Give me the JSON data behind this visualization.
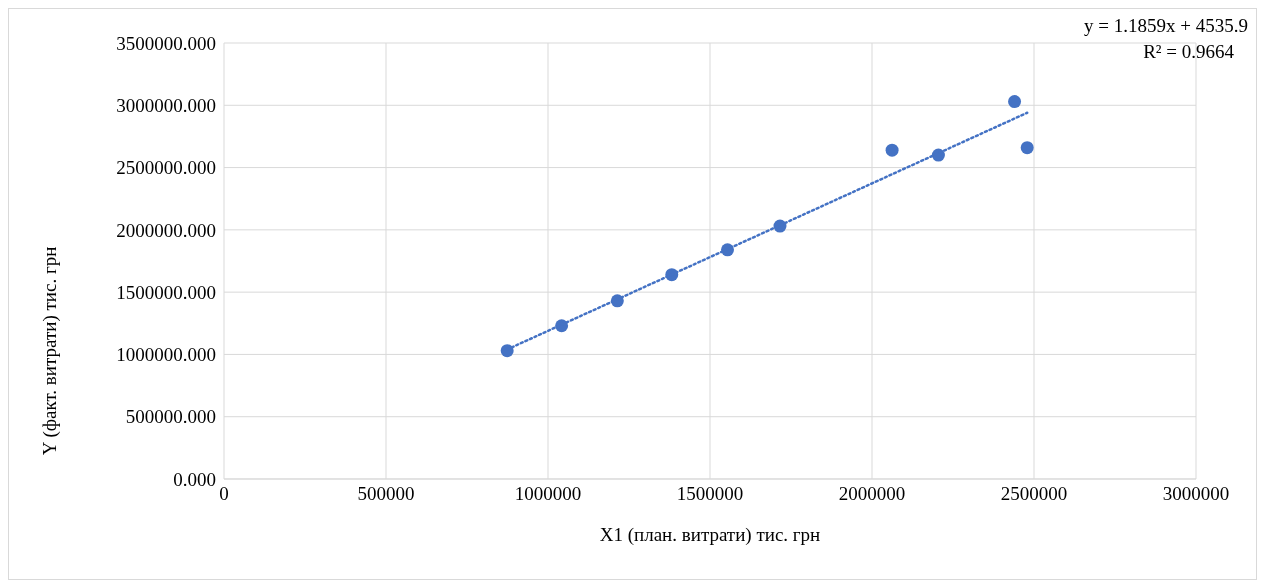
{
  "chart_data": {
    "type": "scatter",
    "xlabel": "X1 (план. витрати) тис. грн",
    "ylabel": "Y (факт. витрати) тис. грн",
    "annotations": [
      "y = 1.1859x + 4535.9",
      "R² = 0.9664"
    ],
    "series": [
      {
        "color": "#4472c4",
        "marker": "circle",
        "x": [
          874000,
          1042000,
          1214000,
          1382000,
          1554000,
          1716000,
          2062000,
          2205000,
          2440000,
          2479000
        ],
        "values": [
          1030000,
          1230000,
          1430000,
          1640000,
          1840000,
          2030000,
          2640000,
          2600000,
          3030000,
          2660000
        ]
      },
      {
        "type": "line",
        "color": "#4472c4",
        "marker": "none",
        "line_style": "dotted",
        "x": [
          874000,
          2479000
        ],
        "values": [
          1040000,
          2940000
        ]
      }
    ],
    "xlim": [
      0,
      3000000
    ],
    "xticks": [
      0,
      500000,
      1000000,
      1500000,
      2000000,
      2500000,
      3000000
    ],
    "ylim": [
      0,
      3500000
    ],
    "yticks": [
      {
        "value": 0,
        "label": "0.000"
      },
      {
        "value": 500000,
        "label": "500000.000"
      },
      {
        "value": 1000000,
        "label": "1000000.000"
      },
      {
        "value": 1500000,
        "label": "1500000.000"
      },
      {
        "value": 2000000,
        "label": "2000000.000"
      },
      {
        "value": 2500000,
        "label": "2500000.000"
      },
      {
        "value": 3000000,
        "label": "3000000.000"
      },
      {
        "value": 3500000,
        "label": "3500000.000"
      }
    ],
    "grid": true,
    "legend": false
  }
}
